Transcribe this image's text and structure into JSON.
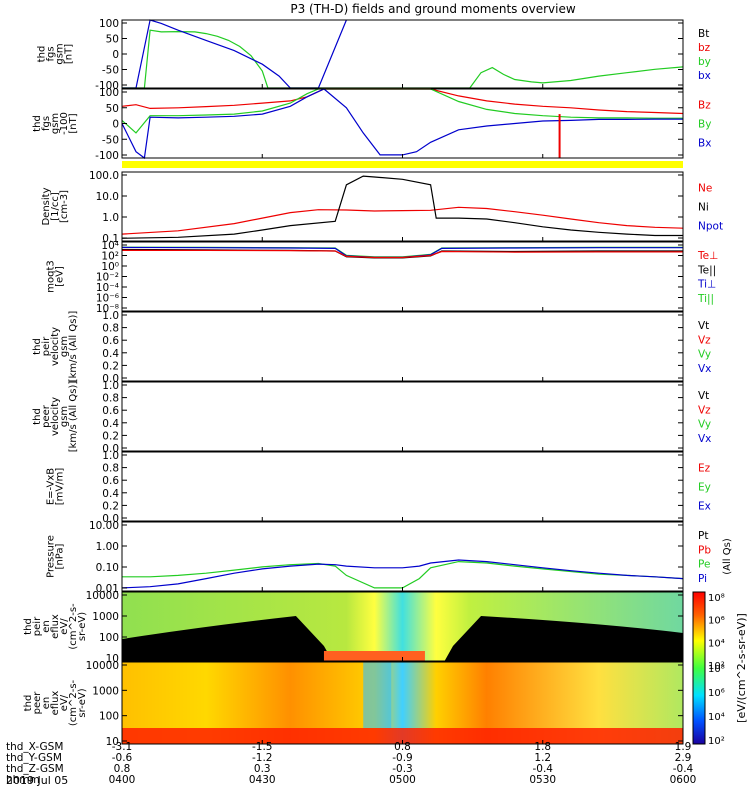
{
  "title": "P3 (TH-D) fields and ground moments overview",
  "colors": {
    "black": "#000000",
    "red": "#ee0000",
    "green": "#22cc22",
    "blue": "#0000cc",
    "yellow": "#ffff00"
  },
  "chart_data": {
    "type": "line",
    "xaxis": {
      "ephemeris": [
        {
          "label": "thd_X-GSM",
          "values": [
            "-3.1",
            "-1.5",
            "0.8",
            "1.8",
            "1.9"
          ]
        },
        {
          "label": "thd_Y-GSM",
          "values": [
            "-0.6",
            "-1.2",
            "-0.9",
            "1.2",
            "2.9"
          ]
        },
        {
          "label": "thd_Z-GSM",
          "values": [
            "0.8",
            "0.3",
            "-0.3",
            "-0.4",
            "-0.4"
          ]
        },
        {
          "label": "hhmm",
          "values": [
            "0400",
            "0430",
            "0500",
            "0530",
            "0600"
          ]
        }
      ],
      "date": "2019 Jul 05",
      "x_hours": [
        0,
        0.5,
        1.0,
        1.5,
        2.0
      ]
    },
    "panels": [
      {
        "id": "fgs-gsm-nT",
        "ylabel": [
          "thd",
          "fgs",
          "gsm",
          "[nT]"
        ],
        "yticks": [
          "100",
          "50",
          "0",
          "-50",
          "-100"
        ],
        "ylim": [
          -100,
          100
        ],
        "scale": "linear",
        "legend": [
          {
            "name": "Bt",
            "color": "#000000"
          },
          {
            "name": "bz",
            "color": "#ee0000"
          },
          {
            "name": "by",
            "color": "#22cc22"
          },
          {
            "name": "bx",
            "color": "#0000cc"
          }
        ],
        "series": [
          {
            "name": "by",
            "color": "#22cc22",
            "x": [
              0.0,
              0.04,
              0.08,
              0.1,
              0.14,
              0.2,
              0.26,
              0.3,
              0.34,
              0.38,
              0.42,
              0.46,
              0.5,
              0.52,
              1.24,
              1.28,
              1.32,
              1.36,
              1.4,
              1.46,
              1.5,
              1.6,
              1.7,
              1.8,
              1.9,
              2.0
            ],
            "y": [
              -100,
              -100,
              -100,
              70,
              65,
              66,
              65,
              60,
              52,
              40,
              22,
              -5,
              -50,
              -100,
              -100,
              -55,
              -40,
              -60,
              -75,
              -82,
              -85,
              -78,
              -65,
              -55,
              -45,
              -38
            ]
          },
          {
            "name": "bx",
            "color": "#0000cc",
            "x": [
              0.0,
              0.05,
              0.1,
              0.14,
              0.2,
              0.3,
              0.4,
              0.5,
              0.56,
              0.6,
              0.7,
              0.8
            ],
            "y": [
              -100,
              -100,
              100,
              90,
              70,
              40,
              10,
              -30,
              -65,
              -100,
              -100,
              100
            ]
          }
        ]
      },
      {
        "id": "fgs-gsm-100",
        "ylabel": [
          "thd",
          "fgs",
          "gsm",
          "-100",
          "[nT]"
        ],
        "yticks": [
          "100",
          "50",
          "0",
          "-50",
          "-100"
        ],
        "ylim": [
          -120,
          100
        ],
        "scale": "linear",
        "legend": [
          {
            "name": "Bz",
            "color": "#ee0000"
          },
          {
            "name": "By",
            "color": "#22cc22"
          },
          {
            "name": "Bx",
            "color": "#0000cc"
          }
        ],
        "series": [
          {
            "name": "Bz",
            "color": "#ee0000",
            "x": [
              0,
              0.05,
              0.1,
              0.2,
              0.3,
              0.4,
              0.5,
              0.6,
              0.66,
              0.72,
              0.8,
              0.9,
              1.0,
              1.1,
              1.2,
              1.3,
              1.4,
              1.5,
              1.6,
              1.7,
              1.8,
              1.9,
              2.0
            ],
            "y": [
              45,
              50,
              38,
              40,
              44,
              48,
              55,
              62,
              75,
              100,
              100,
              100,
              100,
              100,
              78,
              62,
              52,
              45,
              40,
              33,
              28,
              25,
              22
            ]
          },
          {
            "name": "By",
            "color": "#22cc22",
            "x": [
              0,
              0.05,
              0.1,
              0.2,
              0.3,
              0.4,
              0.5,
              0.6,
              0.66,
              0.7,
              0.75,
              0.8,
              1.0,
              1.1,
              1.2,
              1.3,
              1.4,
              1.5,
              1.6,
              1.7,
              1.8,
              1.9,
              2.0
            ],
            "y": [
              0,
              -40,
              15,
              15,
              17,
              20,
              30,
              55,
              85,
              100,
              100,
              100,
              100,
              100,
              60,
              35,
              22,
              15,
              10,
              8,
              8,
              7,
              7
            ]
          },
          {
            "name": "Bx",
            "color": "#0000cc",
            "x": [
              0,
              0.05,
              0.08,
              0.1,
              0.2,
              0.3,
              0.4,
              0.5,
              0.6,
              0.66,
              0.72,
              0.8,
              0.86,
              0.92,
              1.0,
              1.05,
              1.1,
              1.2,
              1.3,
              1.4,
              1.5,
              1.6,
              1.7,
              1.8,
              1.9,
              2.0
            ],
            "y": [
              -10,
              -100,
              -120,
              10,
              8,
              10,
              13,
              20,
              45,
              75,
              100,
              40,
              -40,
              -110,
              -110,
              -100,
              -70,
              -30,
              -18,
              -10,
              -2,
              0,
              3,
              3,
              4,
              4
            ]
          }
        ],
        "spike": {
          "x": 1.56,
          "ymin": -120,
          "ymax": 20,
          "color": "#ee0000"
        }
      },
      {
        "id": "density",
        "ylabel": [
          "Density",
          "[1/cc]",
          "[cm-3]"
        ],
        "yticks": [
          "100.0",
          "10.0",
          "1.0",
          "0.1"
        ],
        "ylim": [
          0.05,
          300
        ],
        "scale": "log",
        "legend": [
          {
            "name": "Ne",
            "color": "#ee0000"
          },
          {
            "name": "Ni",
            "color": "#000000"
          },
          {
            "name": "Npot",
            "color": "#0000cc"
          }
        ],
        "series": [
          {
            "name": "Ne",
            "color": "#ee0000",
            "x": [
              0,
              0.2,
              0.4,
              0.5,
              0.6,
              0.7,
              0.8,
              0.9,
              1.0,
              1.1,
              1.2,
              1.3,
              1.4,
              1.5,
              1.6,
              1.7,
              1.8,
              1.9,
              2.0
            ],
            "y": [
              0.12,
              0.18,
              0.45,
              0.9,
              1.8,
              2.6,
              2.5,
              2.2,
              2.3,
              2.4,
              3.5,
              3.0,
              2.0,
              1.3,
              0.8,
              0.5,
              0.35,
              0.28,
              0.25
            ]
          },
          {
            "name": "Ni",
            "color": "#000000",
            "x": [
              0,
              0.2,
              0.4,
              0.5,
              0.6,
              0.76,
              0.8,
              0.86,
              0.9,
              1.0,
              1.1,
              1.12,
              1.2,
              1.3,
              1.4,
              1.5,
              1.6,
              1.7,
              1.8,
              1.9,
              2.0
            ],
            "y": [
              0.07,
              0.08,
              0.12,
              0.2,
              0.35,
              0.6,
              60,
              180,
              160,
              120,
              60,
              0.9,
              0.9,
              0.8,
              0.5,
              0.3,
              0.2,
              0.15,
              0.12,
              0.1,
              0.1
            ]
          }
        ]
      },
      {
        "id": "temperature",
        "ylabel": [
          "moqt3",
          "[eV]"
        ],
        "yticks": [
          "10⁴",
          "10²",
          "10⁰",
          "10⁻²",
          "10⁻⁴",
          "10⁻⁶",
          "10⁻⁸"
        ],
        "ylim": [
          1e-09,
          100000.0
        ],
        "scale": "log",
        "legend": [
          {
            "name": "Te⊥",
            "color": "#ee0000"
          },
          {
            "name": "Te||",
            "color": "#000000"
          },
          {
            "name": "Ti⊥",
            "color": "#0000cc"
          },
          {
            "name": "Ti||",
            "color": "#22cc22"
          }
        ],
        "series": [
          {
            "name": "Ti||",
            "color": "#22cc22",
            "x": [
              0,
              0.3,
              0.6,
              0.76,
              0.8,
              0.9,
              1.0,
              1.1,
              1.14,
              1.4,
              1.7,
              2.0
            ],
            "y": [
              9000,
              8000,
              7000,
              6000,
              200,
              100,
              100,
              300,
              6000,
              7000,
              8000,
              8000
            ]
          },
          {
            "name": "Ti⊥",
            "color": "#0000cc",
            "x": [
              0,
              0.3,
              0.6,
              0.76,
              0.8,
              0.9,
              1.0,
              1.1,
              1.14,
              1.4,
              1.7,
              2.0
            ],
            "y": [
              8000,
              7000,
              6000,
              5000,
              150,
              80,
              80,
              250,
              5000,
              6000,
              7000,
              7000
            ]
          },
          {
            "name": "Te||",
            "color": "#000000",
            "x": [
              0,
              0.3,
              0.6,
              0.76,
              0.8,
              0.9,
              1.0,
              1.1,
              1.14,
              1.4,
              1.7,
              2.0
            ],
            "y": [
              3000,
              2500,
              2000,
              1500,
              100,
              60,
              60,
              150,
              1500,
              1200,
              1500,
              1500
            ]
          },
          {
            "name": "Te⊥",
            "color": "#ee0000",
            "x": [
              0,
              0.3,
              0.6,
              0.76,
              0.8,
              0.9,
              1.0,
              1.1,
              1.14,
              1.4,
              1.7,
              2.0
            ],
            "y": [
              2000,
              2000,
              1800,
              1500,
              120,
              70,
              70,
              180,
              1200,
              900,
              1000,
              1000
            ]
          }
        ]
      },
      {
        "id": "peir-velocity",
        "ylabel": [
          "thd",
          "peir",
          "velocity",
          "gsm",
          "[km/s (All Qs)]"
        ],
        "yticks": [
          "1.0",
          "0.8",
          "0.6",
          "0.4",
          "0.2",
          "0.0"
        ],
        "ylim": [
          0,
          1
        ],
        "scale": "linear",
        "legend": [
          {
            "name": "Vt",
            "color": "#000000"
          },
          {
            "name": "Vz",
            "color": "#ee0000"
          },
          {
            "name": "Vy",
            "color": "#22cc22"
          },
          {
            "name": "Vx",
            "color": "#0000cc"
          }
        ],
        "series": []
      },
      {
        "id": "peer-velocity",
        "ylabel": [
          "thd",
          "peer",
          "velocity",
          "gsm",
          "[km/s (All Qs)]"
        ],
        "yticks": [
          "1.0",
          "0.8",
          "0.6",
          "0.4",
          "0.2",
          "0.0"
        ],
        "ylim": [
          0,
          1
        ],
        "scale": "linear",
        "legend": [
          {
            "name": "Vt",
            "color": "#000000"
          },
          {
            "name": "Vz",
            "color": "#ee0000"
          },
          {
            "name": "Vy",
            "color": "#22cc22"
          },
          {
            "name": "Vx",
            "color": "#0000cc"
          }
        ],
        "series": []
      },
      {
        "id": "efield",
        "ylabel": [
          "E=-VxB",
          "[mV/m]"
        ],
        "yticks": [
          "1.0",
          "0.8",
          "0.6",
          "0.4",
          "0.2",
          "0.0"
        ],
        "ylim": [
          0,
          1
        ],
        "scale": "linear",
        "legend": [
          {
            "name": "Ez",
            "color": "#ee0000"
          },
          {
            "name": "Ey",
            "color": "#22cc22"
          },
          {
            "name": "Ex",
            "color": "#0000cc"
          }
        ],
        "series": []
      },
      {
        "id": "pressure",
        "ylabel": [
          "Pressure",
          "[nPa]"
        ],
        "yticks": [
          "10.00",
          "1.00",
          "0.10",
          "0.01"
        ],
        "ylim": [
          0.004,
          30
        ],
        "scale": "log",
        "legend": [
          {
            "name": "Pt",
            "color": "#000000"
          },
          {
            "name": "Pb",
            "color": "#ee0000"
          },
          {
            "name": "Pe",
            "color": "#22cc22"
          },
          {
            "name": "Pi",
            "color": "#0000cc"
          }
        ],
        "legend_note": "(All Qs)",
        "series": [
          {
            "name": "Pe",
            "color": "#22cc22",
            "x": [
              0,
              0.1,
              0.2,
              0.3,
              0.4,
              0.5,
              0.6,
              0.7,
              0.76,
              0.8,
              0.9,
              1.0,
              1.06,
              1.1,
              1.2,
              1.3,
              1.4,
              1.5,
              1.6,
              1.7,
              1.8,
              1.9,
              2.0
            ],
            "y": [
              0.025,
              0.025,
              0.03,
              0.04,
              0.06,
              0.09,
              0.12,
              0.14,
              0.1,
              0.03,
              0.006,
              0.006,
              0.02,
              0.08,
              0.18,
              0.15,
              0.1,
              0.07,
              0.05,
              0.035,
              0.03,
              0.025,
              0.02
            ]
          },
          {
            "name": "Pi",
            "color": "#0000cc",
            "x": [
              0,
              0.1,
              0.2,
              0.3,
              0.4,
              0.5,
              0.6,
              0.7,
              0.76,
              0.8,
              0.9,
              1.0,
              1.06,
              1.1,
              1.2,
              1.3,
              1.4,
              1.5,
              1.6,
              1.7,
              1.8,
              1.9,
              2.0
            ],
            "y": [
              0.006,
              0.007,
              0.01,
              0.02,
              0.04,
              0.07,
              0.1,
              0.13,
              0.12,
              0.1,
              0.08,
              0.08,
              0.1,
              0.15,
              0.22,
              0.18,
              0.12,
              0.08,
              0.055,
              0.04,
              0.03,
              0.025,
              0.02
            ]
          }
        ]
      },
      {
        "id": "peir-eflux",
        "type": "heatmap",
        "ylabel": [
          "thd",
          "peir",
          "en",
          "eflux",
          "eV/",
          "(cm^2-s-",
          "sr-eV)"
        ],
        "yticks": [
          "10000",
          "1000",
          "100",
          "10"
        ],
        "ylim": [
          5,
          30000
        ],
        "scale": "log"
      },
      {
        "id": "peer-eflux",
        "type": "heatmap",
        "ylabel": [
          "thd",
          "peer",
          "en",
          "eflux",
          "eV/",
          "(cm^2-s-",
          "sr-eV)"
        ],
        "yticks": [
          "10000",
          "1000",
          "100",
          "10"
        ],
        "ylim": [
          5,
          30000
        ],
        "scale": "log"
      }
    ],
    "colorbar": {
      "label": "[eV/(cm^2-s-sr-eV)]",
      "upper_ticks": [
        "10⁸",
        "10⁶",
        "10⁴",
        "10²"
      ],
      "lower_ticks": [
        "10⁸",
        "10⁶",
        "10⁴",
        "10²"
      ]
    }
  }
}
